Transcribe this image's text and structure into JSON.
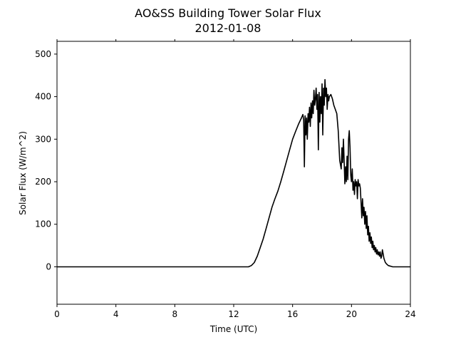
{
  "chart_data": {
    "type": "line",
    "title": "AO&SS Building Tower Solar Flux",
    "subtitle": "2012-01-08",
    "xlabel": "Time (UTC)",
    "ylabel": "Solar Flux (W/m^2)",
    "xlim": [
      0,
      24
    ],
    "ylim": [
      -88,
      530
    ],
    "xticks": [
      0,
      4,
      8,
      12,
      16,
      20,
      24
    ],
    "yticks": [
      0,
      100,
      200,
      300,
      400,
      500
    ],
    "grid": false,
    "line_color": "#000000",
    "series": [
      {
        "x": [
          0,
          13.0,
          13.2,
          13.4,
          13.6,
          13.8,
          14.0,
          14.2,
          14.4,
          14.6,
          14.8,
          15.0,
          15.2,
          15.4,
          15.6,
          15.8,
          16.0,
          16.2,
          16.4,
          16.6,
          16.7,
          16.75,
          16.8,
          16.85,
          16.9,
          16.95,
          17.0,
          17.05,
          17.1,
          17.15,
          17.2,
          17.25,
          17.3,
          17.35,
          17.4,
          17.45,
          17.5,
          17.55,
          17.6,
          17.65,
          17.7,
          17.75,
          17.8,
          17.85,
          17.9,
          17.95,
          18.0,
          18.05,
          18.1,
          18.15,
          18.2,
          18.25,
          18.3,
          18.35,
          18.4,
          18.45,
          18.5,
          18.6,
          18.7,
          18.8,
          18.9,
          19.0,
          19.1,
          19.2,
          19.3,
          19.35,
          19.4,
          19.45,
          19.5,
          19.55,
          19.6,
          19.65,
          19.7,
          19.75,
          19.8,
          19.85,
          19.9,
          19.95,
          20.0,
          20.05,
          20.1,
          20.15,
          20.2,
          20.25,
          20.3,
          20.35,
          20.4,
          20.45,
          20.5,
          20.55,
          20.6,
          20.65,
          20.7,
          20.75,
          20.8,
          20.85,
          20.9,
          20.95,
          21.0,
          21.05,
          21.1,
          21.15,
          21.2,
          21.25,
          21.3,
          21.35,
          21.4,
          21.45,
          21.5,
          21.55,
          21.6,
          21.65,
          21.7,
          21.75,
          21.8,
          21.85,
          21.9,
          21.95,
          22.0,
          22.05,
          22.1,
          22.15,
          22.2,
          22.25,
          22.3,
          22.4,
          22.5,
          22.6,
          22.7,
          22.8,
          23.0,
          23.3,
          24
        ],
        "y": [
          0,
          0,
          3,
          10,
          25,
          45,
          65,
          90,
          115,
          140,
          160,
          178,
          200,
          225,
          250,
          275,
          300,
          318,
          335,
          350,
          358,
          345,
          235,
          355,
          310,
          350,
          300,
          360,
          340,
          375,
          330,
          385,
          350,
          390,
          360,
          415,
          380,
          395,
          420,
          370,
          405,
          275,
          410,
          340,
          400,
          360,
          430,
          310,
          420,
          380,
          440,
          400,
          420,
          370,
          405,
          390,
          400,
          405,
          395,
          380,
          370,
          360,
          320,
          250,
          230,
          280,
          245,
          300,
          250,
          195,
          235,
          200,
          260,
          205,
          300,
          320,
          280,
          215,
          200,
          230,
          180,
          200,
          170,
          205,
          190,
          200,
          160,
          205,
          190,
          195,
          185,
          150,
          115,
          160,
          120,
          140,
          100,
          130,
          90,
          120,
          75,
          95,
          60,
          80,
          55,
          70,
          45,
          60,
          40,
          50,
          35,
          45,
          30,
          40,
          28,
          35,
          25,
          35,
          20,
          25,
          40,
          30,
          20,
          15,
          10,
          6,
          3,
          2,
          1,
          0,
          0,
          0,
          0
        ]
      }
    ]
  }
}
